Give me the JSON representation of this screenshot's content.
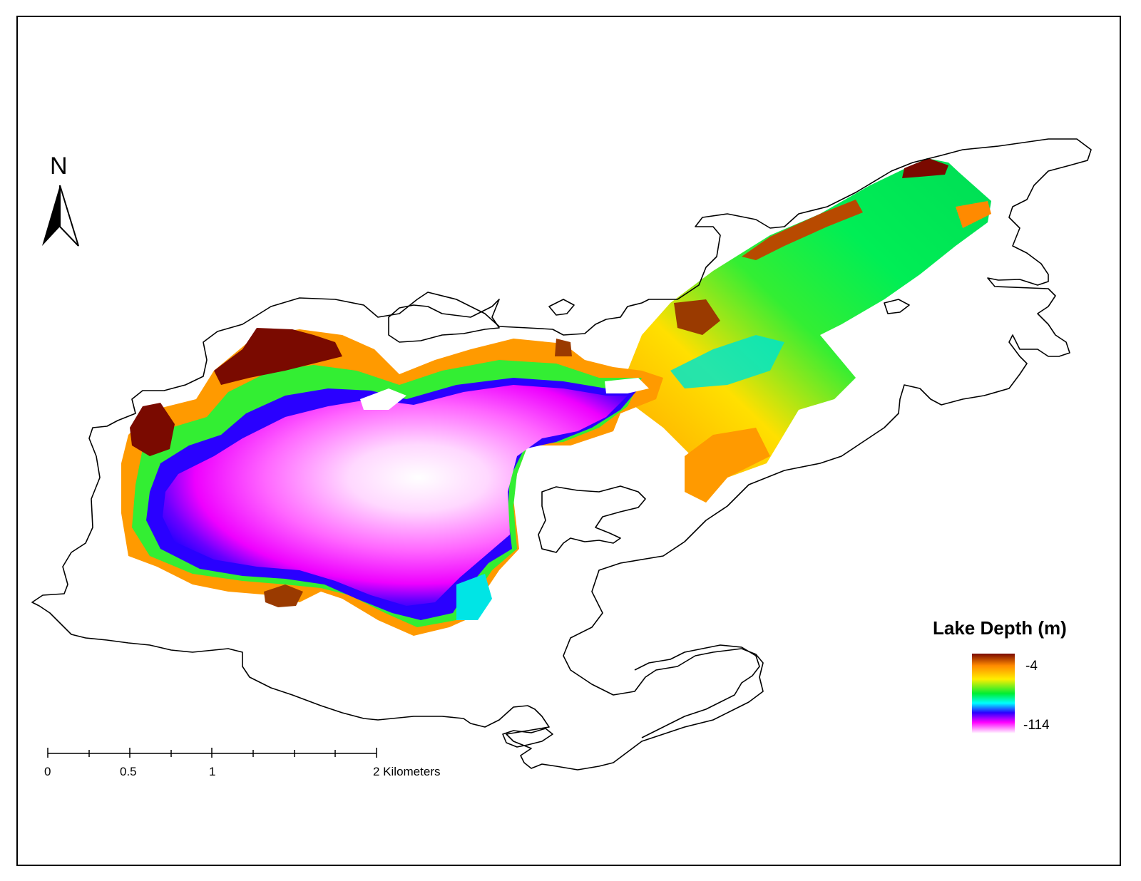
{
  "map": {
    "north_arrow_label": "N",
    "legend": {
      "title": "Lake Depth (m)",
      "max_label": "-4",
      "min_label": "-114",
      "ramp_colors": [
        "#7a0a00",
        "#ff8a00",
        "#ffee00",
        "#00ee33",
        "#00ffff",
        "#2a00ff",
        "#ff00ff",
        "#ffffff"
      ]
    },
    "scale_bar": {
      "labels": [
        "0",
        "0.5",
        "1",
        "2 Kilometers"
      ]
    },
    "colors": {
      "shoreline": "#000000",
      "background": "#ffffff"
    }
  }
}
